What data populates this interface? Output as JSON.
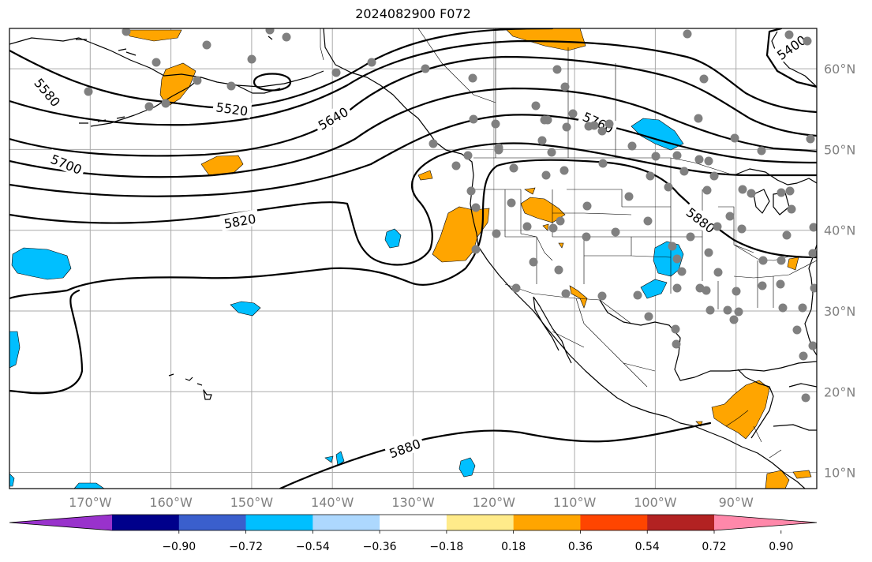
{
  "map": {
    "title": "2024082900 F072",
    "projection": "PlateCarree",
    "extent": {
      "lon_min": -180,
      "lon_max": -80,
      "lat_min": 8,
      "lat_max": 65
    },
    "gridlines": true,
    "lat_labels": [
      "10°N",
      "20°N",
      "30°N",
      "40°N",
      "50°N",
      "60°N"
    ],
    "lat_values": [
      10,
      20,
      30,
      40,
      50,
      60
    ],
    "lon_labels": [
      "170°W",
      "160°W",
      "150°W",
      "140°W",
      "130°W",
      "120°W",
      "110°W",
      "100°W",
      "90°W"
    ],
    "lon_values": [
      -170,
      -160,
      -150,
      -140,
      -130,
      -120,
      -110,
      -100,
      -90
    ],
    "contour_labels": [
      "5400",
      "5520",
      "5580",
      "5640",
      "5700",
      "5760",
      "5820",
      "5880",
      "5880"
    ],
    "contour_color": "#000000",
    "station_color": "#808080",
    "positive_fill_color": "#ffa500",
    "negative_fill_color": "#00bfff"
  },
  "colorbar": {
    "labels": [
      "−0.90",
      "−0.72",
      "−0.54",
      "−0.36",
      "−0.18",
      "0.18",
      "0.36",
      "0.54",
      "0.72",
      "0.90"
    ],
    "colors": [
      "#9932cc",
      "#00008b",
      "#3a5fcd",
      "#00bfff",
      "#add8fe",
      "#ffffff",
      "#ffeb8a",
      "#ffa500",
      "#ff4500",
      "#b22222",
      "#ff88aa"
    ],
    "extend": "both"
  }
}
